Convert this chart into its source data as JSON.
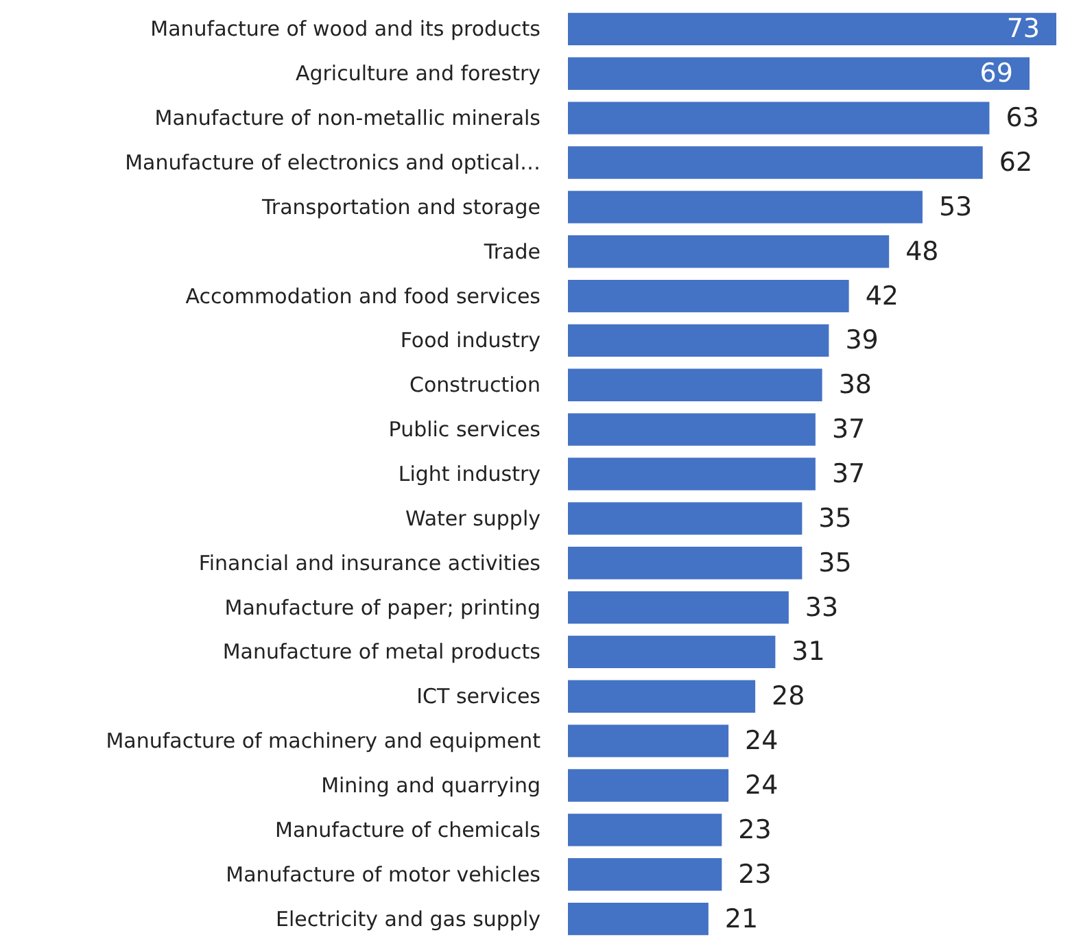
{
  "chart_data": {
    "type": "bar",
    "orientation": "horizontal",
    "data_labels": true,
    "categories": [
      "Manufacture of wood and its products",
      "Agriculture and forestry",
      "Manufacture of non-metallic minerals",
      "Manufacture of electronics and optical…",
      "Transportation and storage",
      "Trade",
      "Accommodation and food services",
      "Food industry",
      "Construction",
      "Public services",
      "Light industry",
      "Water supply",
      "Financial and insurance activities",
      "Manufacture of paper; printing",
      "Manufacture of metal products",
      "ICT services",
      "Manufacture of machinery and equipment",
      "Mining and quarrying",
      "Manufacture of chemicals",
      "Manufacture of motor vehicles",
      "Electricity and gas supply"
    ],
    "values": [
      73,
      69,
      63,
      62,
      53,
      48,
      42,
      39,
      38,
      37,
      37,
      35,
      35,
      33,
      31,
      28,
      24,
      24,
      23,
      23,
      21
    ],
    "color": "#4472c4"
  }
}
